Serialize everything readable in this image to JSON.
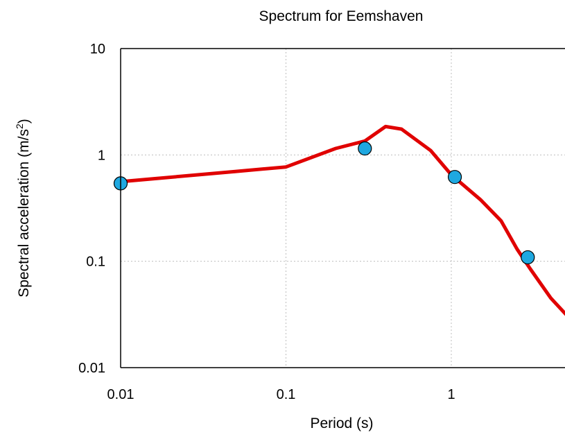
{
  "chart_data": {
    "type": "line",
    "title": "Spectrum for Eemshaven",
    "xlabel": "Period (s)",
    "ylabel": "Spectral acceleration (m/s",
    "ylabel_sup": "2",
    "ylabel_close": ")",
    "xscale": "log",
    "yscale": "log",
    "xlim": [
      0.01,
      5
    ],
    "ylim": [
      0.01,
      10
    ],
    "grid": true,
    "x_ticks": [
      {
        "value": 0.01,
        "label": "0.01"
      },
      {
        "value": 0.1,
        "label": "0.1"
      },
      {
        "value": 1,
        "label": "1"
      }
    ],
    "y_ticks": [
      {
        "value": 0.01,
        "label": "0.01"
      },
      {
        "value": 0.1,
        "label": "0.1"
      },
      {
        "value": 1,
        "label": "1"
      },
      {
        "value": 10,
        "label": "10"
      }
    ],
    "series": [
      {
        "type": "line",
        "color": "#e00000",
        "points": [
          [
            0.01,
            0.56
          ],
          [
            0.05,
            0.7
          ],
          [
            0.1,
            0.77
          ],
          [
            0.2,
            1.15
          ],
          [
            0.3,
            1.35
          ],
          [
            0.4,
            1.85
          ],
          [
            0.5,
            1.75
          ],
          [
            0.75,
            1.1
          ],
          [
            1.0,
            0.65
          ],
          [
            1.5,
            0.38
          ],
          [
            2.0,
            0.24
          ],
          [
            2.5,
            0.13
          ],
          [
            3.0,
            0.085
          ],
          [
            4.0,
            0.045
          ],
          [
            5.0,
            0.031
          ]
        ]
      },
      {
        "type": "scatter",
        "color": "#1fa8e0",
        "points": [
          [
            0.01,
            0.54
          ],
          [
            0.3,
            1.15
          ],
          [
            1.05,
            0.62
          ],
          [
            2.9,
            0.109
          ]
        ]
      }
    ]
  }
}
